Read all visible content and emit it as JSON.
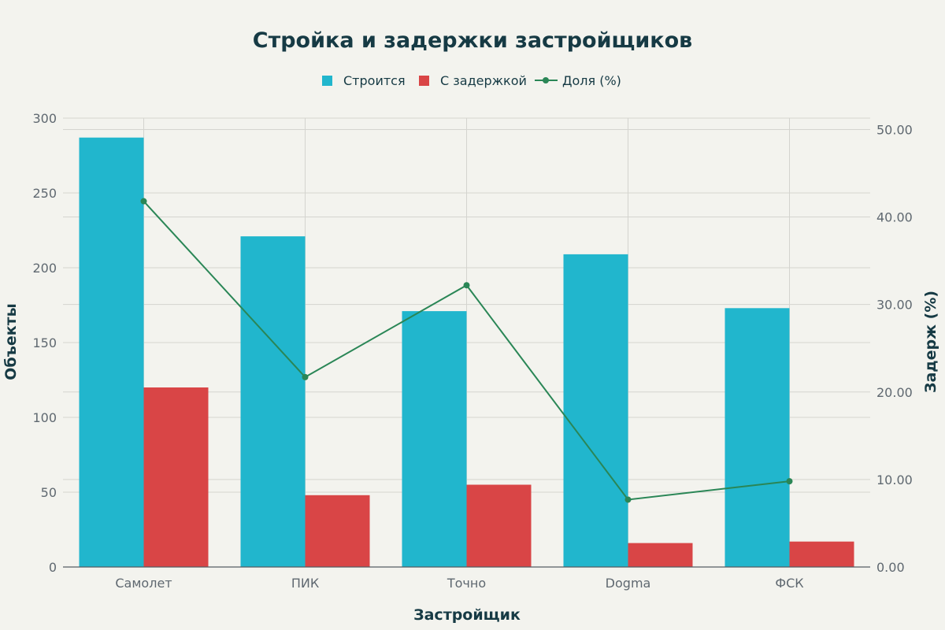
{
  "chart_data": {
    "type": "bar",
    "title": "Стройка и задержки застройщиков",
    "xlabel": "Застройщик",
    "ylabel": "Объекты",
    "y2label": "Задерж (%)",
    "categories": [
      "Самолет",
      "ПИК",
      "Точно",
      "Dogma",
      "ФСК"
    ],
    "series": [
      {
        "name": "Строится",
        "kind": "bar",
        "axis": "left",
        "color": "#21b6cd",
        "values": [
          287,
          221,
          171,
          209,
          173
        ]
      },
      {
        "name": "С задержкой",
        "kind": "bar",
        "axis": "left",
        "color": "#d94546",
        "values": [
          120,
          48,
          55,
          16,
          17
        ]
      },
      {
        "name": "Доля (%)",
        "kind": "line",
        "axis": "right",
        "color": "#2a8656",
        "values": [
          41.8,
          21.7,
          32.2,
          7.7,
          9.8
        ]
      }
    ],
    "ylim": [
      0,
      300
    ],
    "y2lim": [
      0,
      51.3
    ],
    "yticks": [
      "0",
      "50",
      "100",
      "150",
      "200",
      "250",
      "300"
    ],
    "y2ticks": [
      "0.00",
      "10.00",
      "20.00",
      "30.00",
      "40.00",
      "50.00"
    ],
    "legend": "top-center",
    "grid": true
  }
}
